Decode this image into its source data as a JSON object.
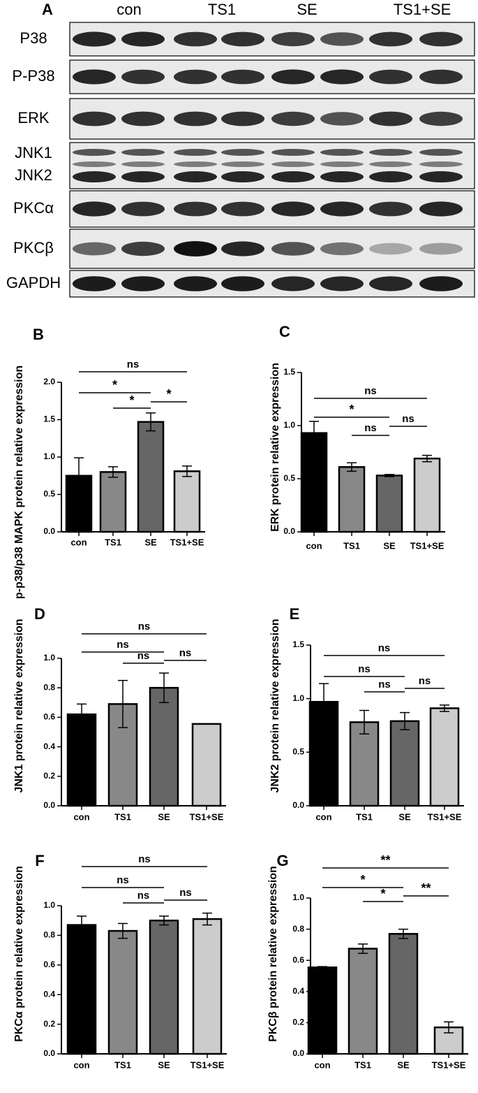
{
  "panel_a": {
    "label": "A",
    "groups": [
      "con",
      "TS1",
      "SE",
      "TS1+SE"
    ],
    "rows": [
      [
        "P38"
      ],
      [
        "P-P38"
      ],
      [
        "ERK"
      ],
      [
        "JNK1",
        "JNK2"
      ],
      [
        "PKCα"
      ],
      [
        "PKCβ"
      ],
      [
        "GAPDH"
      ]
    ]
  },
  "chart_data": [
    {
      "type": "bar",
      "label": "B",
      "y_label": "p-p38/p38 MAPK protein relative expression",
      "categories": [
        "con",
        "TS1",
        "SE",
        "TS1+SE"
      ],
      "values": [
        0.75,
        0.8,
        1.47,
        0.81
      ],
      "errors": [
        0.24,
        0.07,
        0.12,
        0.07
      ],
      "colors": [
        "#000000",
        "#888888",
        "#666666",
        "#cccccc"
      ],
      "ylim": [
        0,
        2
      ],
      "yticks": [
        {
          "value": 0,
          "label": "0.0"
        },
        {
          "value": 0.5,
          "label": "0.5"
        },
        {
          "value": 1,
          "label": "1.0"
        },
        {
          "value": 1.5,
          "label": "1.5"
        },
        {
          "value": 2,
          "label": "2.0"
        }
      ],
      "significance": [
        {
          "pair": [
            0,
            3
          ],
          "label": "ns"
        },
        {
          "pair": [
            0,
            2
          ],
          "label": "*"
        },
        {
          "pair": [
            2,
            3
          ],
          "label": "*"
        },
        {
          "pair": [
            1,
            2
          ],
          "label": "*"
        }
      ]
    },
    {
      "type": "bar",
      "label": "C",
      "y_label": "ERK protein relative expression",
      "categories": [
        "con",
        "TS1",
        "SE",
        "TS1+SE"
      ],
      "values": [
        0.93,
        0.61,
        0.53,
        0.69
      ],
      "errors": [
        0.11,
        0.04,
        0.01,
        0.03
      ],
      "colors": [
        "#000000",
        "#888888",
        "#666666",
        "#cccccc"
      ],
      "ylim": [
        0,
        1.5
      ],
      "yticks": [
        {
          "value": 0,
          "label": "0.0"
        },
        {
          "value": 0.5,
          "label": "0.5"
        },
        {
          "value": 1,
          "label": "1.0"
        },
        {
          "value": 1.5,
          "label": "1.5"
        }
      ],
      "significance": [
        {
          "pair": [
            0,
            3
          ],
          "label": "ns"
        },
        {
          "pair": [
            0,
            2
          ],
          "label": "*"
        },
        {
          "pair": [
            2,
            3
          ],
          "label": "ns"
        },
        {
          "pair": [
            1,
            2
          ],
          "label": "ns"
        }
      ]
    },
    {
      "type": "bar",
      "label": "D",
      "y_label": "JNK1 protein relative expression",
      "categories": [
        "con",
        "TS1",
        "SE",
        "TS1+SE"
      ],
      "values": [
        0.62,
        0.69,
        0.8,
        0.555
      ],
      "errors": [
        0.07,
        0.16,
        0.1,
        0
      ],
      "colors": [
        "#000000",
        "#888888",
        "#666666",
        "#cccccc"
      ],
      "ylim": [
        0,
        1
      ],
      "yticks": [
        {
          "value": 0,
          "label": "0.0"
        },
        0.2,
        0.4,
        0.6,
        0.8,
        {
          "value": 1,
          "label": "1.0"
        }
      ],
      "significance": [
        {
          "pair": [
            0,
            3
          ],
          "label": "ns"
        },
        {
          "pair": [
            0,
            2
          ],
          "label": "ns"
        },
        {
          "pair": [
            2,
            3
          ],
          "label": "ns"
        },
        {
          "pair": [
            1,
            2
          ],
          "label": "ns"
        }
      ]
    },
    {
      "type": "bar",
      "label": "E",
      "y_label": "JNK2 protein relative expression",
      "categories": [
        "con",
        "TS1",
        "SE",
        "TS1+SE"
      ],
      "values": [
        0.97,
        0.78,
        0.79,
        0.91
      ],
      "errors": [
        0.17,
        0.11,
        0.08,
        0.03
      ],
      "colors": [
        "#000000",
        "#888888",
        "#666666",
        "#cccccc"
      ],
      "ylim": [
        0,
        1.5
      ],
      "yticks": [
        {
          "value": 0,
          "label": "0.0"
        },
        0.5,
        {
          "value": 1,
          "label": "1.0"
        },
        1.5
      ],
      "significance": [
        {
          "pair": [
            0,
            3
          ],
          "label": "ns"
        },
        {
          "pair": [
            0,
            2
          ],
          "label": "ns"
        },
        {
          "pair": [
            2,
            3
          ],
          "label": "ns"
        },
        {
          "pair": [
            1,
            2
          ],
          "label": "ns"
        }
      ]
    },
    {
      "type": "bar",
      "label": "F",
      "y_label": "PKCα protein relative expression",
      "categories": [
        "con",
        "TS1",
        "SE",
        "TS1+SE"
      ],
      "values": [
        0.87,
        0.83,
        0.9,
        0.91
      ],
      "errors": [
        0.06,
        0.05,
        0.03,
        0.04
      ],
      "colors": [
        "#000000",
        "#888888",
        "#666666",
        "#cccccc"
      ],
      "ylim": [
        0,
        1
      ],
      "yticks": [
        {
          "value": 0,
          "label": "0.0"
        },
        0.2,
        0.4,
        0.6,
        0.8,
        {
          "value": 1,
          "label": "1.0"
        }
      ],
      "significance": [
        {
          "pair": [
            0,
            3
          ],
          "label": "ns"
        },
        {
          "pair": [
            0,
            2
          ],
          "label": "ns"
        },
        {
          "pair": [
            2,
            3
          ],
          "label": "ns"
        },
        {
          "pair": [
            1,
            2
          ],
          "label": "ns"
        }
      ]
    },
    {
      "type": "bar",
      "label": "G",
      "y_label": "PKCβ protein relative expression",
      "categories": [
        "con",
        "TS1",
        "SE",
        "TS1+SE"
      ],
      "values": [
        0.555,
        0.675,
        0.77,
        0.17
      ],
      "errors": [
        0.005,
        0.03,
        0.03,
        0.035
      ],
      "colors": [
        "#000000",
        "#888888",
        "#666666",
        "#cccccc"
      ],
      "ylim": [
        0,
        1
      ],
      "yticks": [
        {
          "value": 0,
          "label": "0.0"
        },
        0.2,
        0.4,
        0.6,
        0.8,
        {
          "value": 1,
          "label": "1.0"
        }
      ],
      "significance": [
        {
          "pair": [
            0,
            3
          ],
          "label": "**"
        },
        {
          "pair": [
            0,
            2
          ],
          "label": "*"
        },
        {
          "pair": [
            2,
            3
          ],
          "label": "**"
        },
        {
          "pair": [
            1,
            2
          ],
          "label": "*"
        }
      ]
    }
  ]
}
